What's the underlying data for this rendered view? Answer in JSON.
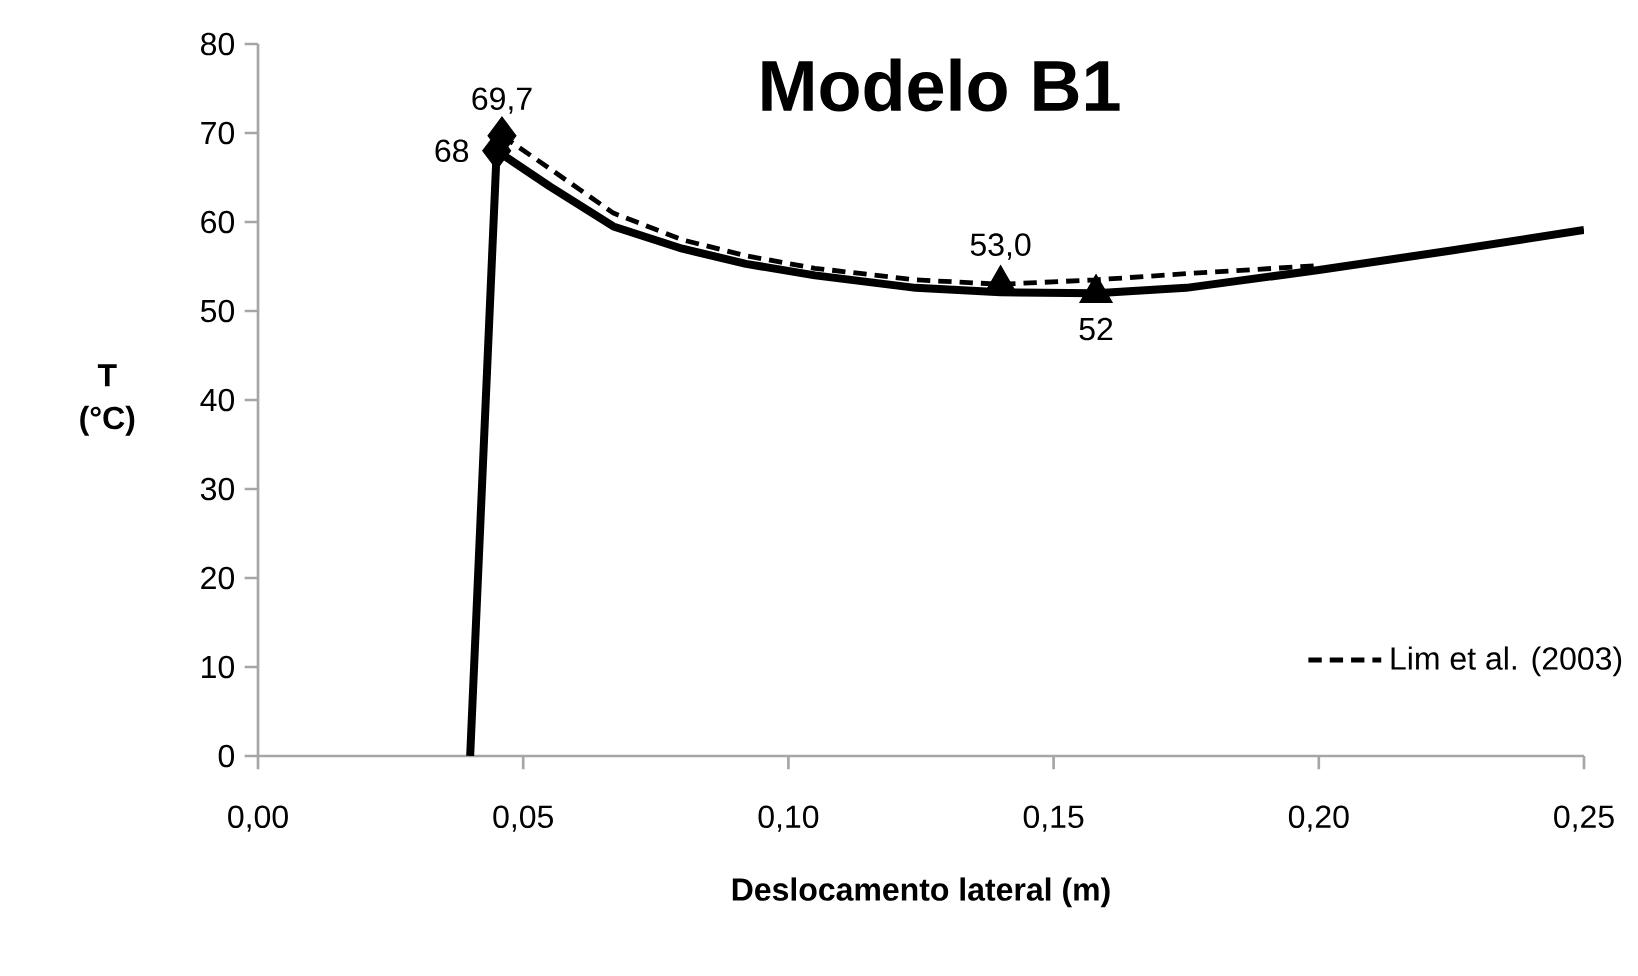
{
  "chart_data": {
    "type": "line",
    "title": "Modelo B1",
    "xlabel": "Deslocamento lateral (m)",
    "ylabel": "T (°C)",
    "xlim": [
      0,
      0.25
    ],
    "xticks": [
      {
        "value": 0,
        "label": "0,00"
      },
      {
        "value": 0.05,
        "label": "0,05"
      },
      {
        "value": 0.1,
        "label": "0,10"
      },
      {
        "value": 0.15,
        "label": "0,15"
      },
      {
        "value": 0.2,
        "label": "0,20"
      },
      {
        "value": 0.25,
        "label": "0,25"
      }
    ],
    "ylim": [
      0,
      80
    ],
    "yticks": [
      0,
      10,
      20,
      30,
      40,
      50,
      60,
      70,
      80
    ],
    "grid": false,
    "legend": "bottom right",
    "series": [
      {
        "color": "#000000",
        "line_style": "solid",
        "marker": "none",
        "x": [
          0.04,
          0.045,
          0.055,
          0.067,
          0.08,
          0.092,
          0.105,
          0.124,
          0.14,
          0.158,
          0.175,
          0.2,
          0.225,
          0.25
        ],
        "values": [
          0,
          68,
          64,
          59.5,
          57,
          55.3,
          54,
          52.6,
          52.1,
          52,
          52.6,
          54.6,
          56.8,
          59.1
        ]
      },
      {
        "name": "Lim et al. (2003)",
        "color": "#000000",
        "line_style": "dashed",
        "marker": "none",
        "x": [
          0.046,
          0.055,
          0.067,
          0.08,
          0.092,
          0.105,
          0.124,
          0.14,
          0.158,
          0.175,
          0.2
        ],
        "values": [
          69.7,
          66,
          61,
          58,
          56.2,
          54.8,
          53.5,
          53.0,
          53.5,
          54.2,
          55.1
        ]
      },
      {
        "type": "scatter",
        "color": "#000000",
        "marker": "diamond",
        "x": [
          0.046,
          0.045
        ],
        "values": [
          69.7,
          68
        ]
      },
      {
        "type": "scatter",
        "color": "#000000",
        "marker": "triangle",
        "x": [
          0.14,
          0.158
        ],
        "values": [
          53.0,
          52
        ]
      }
    ],
    "annotations": [
      {
        "text": "69,7",
        "x": 0.046,
        "y": 69.7
      },
      {
        "text": "68",
        "x": 0.045,
        "y": 68
      },
      {
        "text": "53,0",
        "x": 0.14,
        "y": 53.0
      },
      {
        "text": "52",
        "x": 0.158,
        "y": 52
      }
    ]
  }
}
